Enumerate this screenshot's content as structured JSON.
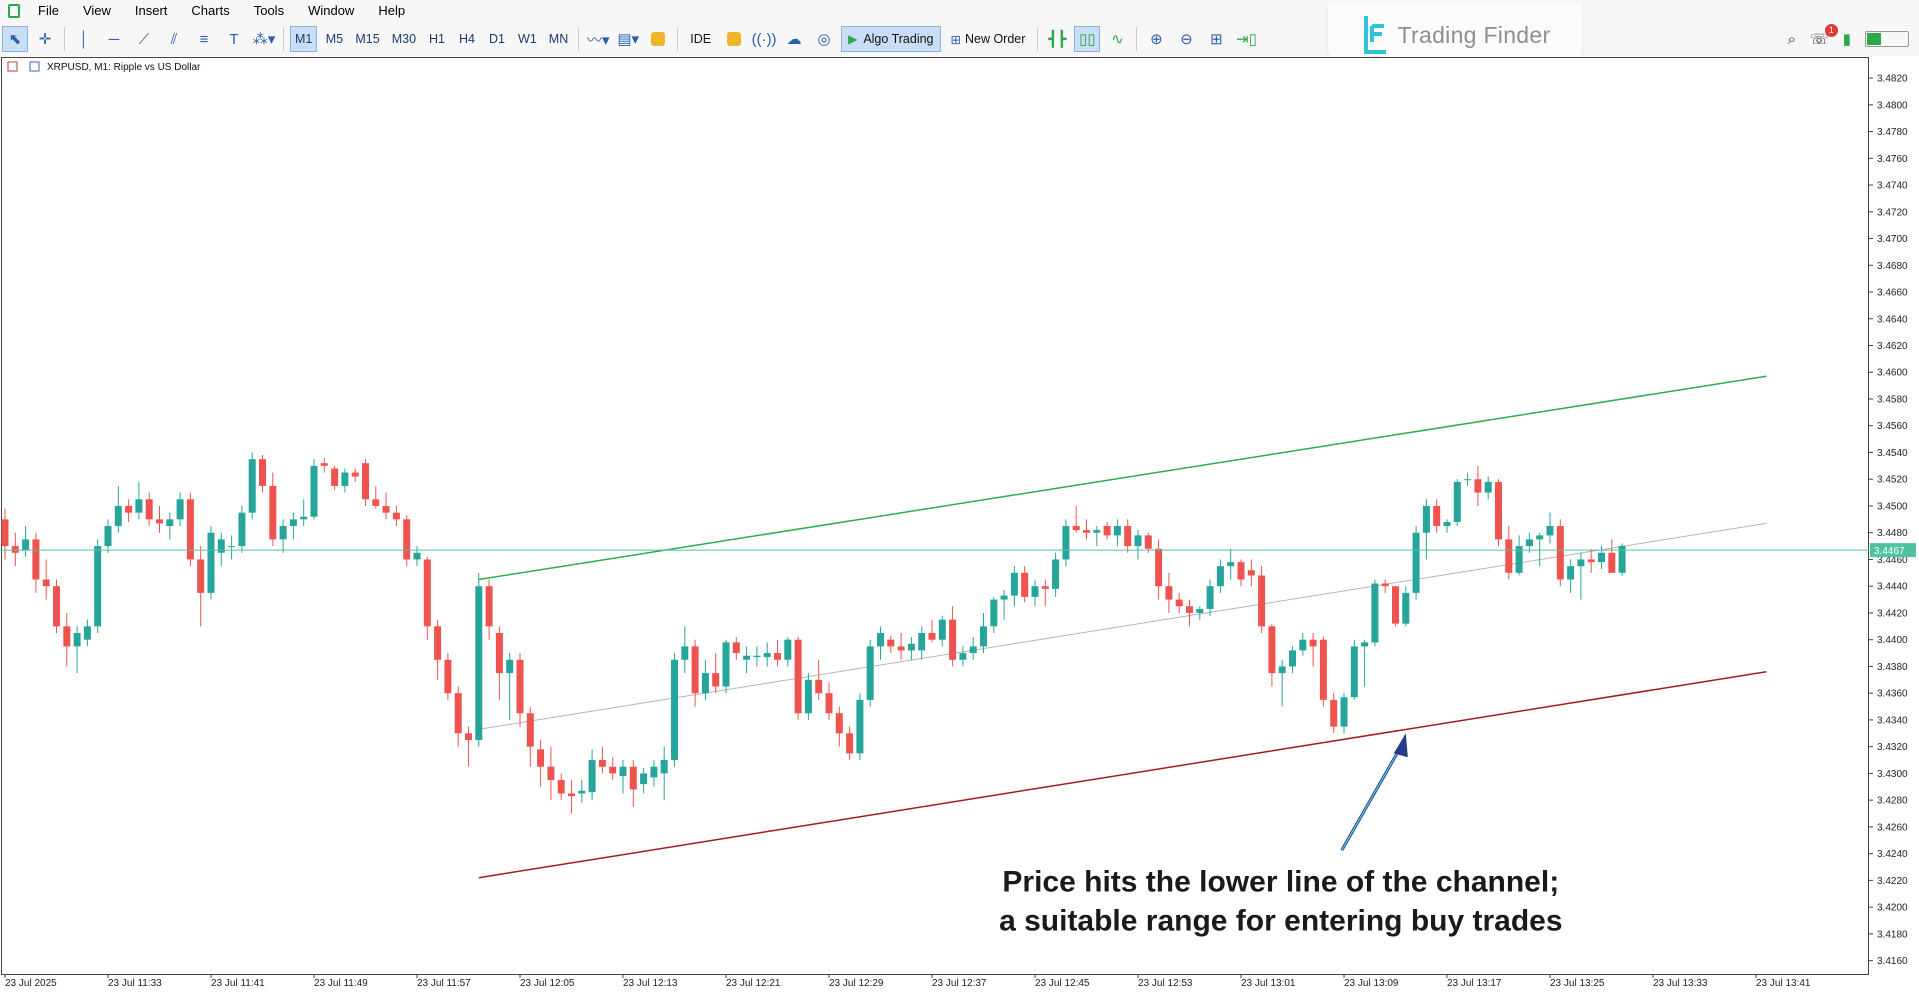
{
  "menu": [
    "File",
    "View",
    "Insert",
    "Charts",
    "Tools",
    "Window",
    "Help"
  ],
  "toolbar": {
    "timeframes": [
      "M1",
      "M5",
      "M15",
      "M30",
      "H1",
      "H4",
      "D1",
      "W1",
      "MN"
    ],
    "active_timeframe": "M1",
    "ide_label": "IDE",
    "algo_label": "Algo Trading",
    "new_order_label": "New Order",
    "notification_count": "1"
  },
  "logo": {
    "text": "Trading Finder"
  },
  "colors": {
    "bull": "#26a69a",
    "bear": "#ef5350",
    "upper_channel": "#2eae4a",
    "lower_channel": "#a51b1b",
    "mid_channel": "#b5b5b5",
    "price_line": "#4fc3a1"
  },
  "chart_data": {
    "type": "candlestick",
    "title": "XRPUSD, M1:  Ripple vs US Dollar",
    "symbol": "XRPUSD",
    "timeframe": "M1",
    "ylim": [
      3.415,
      3.4835
    ],
    "yticks": [
      "3.4820",
      "3.4800",
      "3.4780",
      "3.4760",
      "3.4740",
      "3.4720",
      "3.4700",
      "3.4680",
      "3.4660",
      "3.4640",
      "3.4620",
      "3.4600",
      "3.4580",
      "3.4560",
      "3.4540",
      "3.4520",
      "3.4500",
      "3.4480",
      "3.4460",
      "3.4440",
      "3.4420",
      "3.4400",
      "3.4380",
      "3.4360",
      "3.4340",
      "3.4320",
      "3.4300",
      "3.4280",
      "3.4260",
      "3.4240",
      "3.4220",
      "3.4200",
      "3.4180",
      "3.4160"
    ],
    "xticks": [
      {
        "i": 0,
        "label": "23 Jul 2025"
      },
      {
        "i": 10,
        "label": "23 Jul 11:33"
      },
      {
        "i": 20,
        "label": "23 Jul 11:41"
      },
      {
        "i": 30,
        "label": "23 Jul 11:49"
      },
      {
        "i": 40,
        "label": "23 Jul 11:57"
      },
      {
        "i": 50,
        "label": "23 Jul 12:05"
      },
      {
        "i": 60,
        "label": "23 Jul 12:13"
      },
      {
        "i": 70,
        "label": "23 Jul 12:21"
      },
      {
        "i": 80,
        "label": "23 Jul 12:29"
      },
      {
        "i": 90,
        "label": "23 Jul 12:37"
      },
      {
        "i": 100,
        "label": "23 Jul 12:45"
      },
      {
        "i": 110,
        "label": "23 Jul 12:53"
      },
      {
        "i": 120,
        "label": "23 Jul 13:01"
      },
      {
        "i": 130,
        "label": "23 Jul 13:09"
      },
      {
        "i": 140,
        "label": "23 Jul 13:17"
      },
      {
        "i": 150,
        "label": "23 Jul 13:25"
      },
      {
        "i": 160,
        "label": "23 Jul 13:33"
      },
      {
        "i": 170,
        "label": "23 Jul 13:41"
      }
    ],
    "current_price": 3.4467,
    "current_price_label": "3.4467",
    "channel": {
      "start_index": 46,
      "end_index": 171,
      "upper": [
        3.4445,
        3.4597
      ],
      "middle": [
        3.4333,
        3.4487
      ],
      "lower": [
        3.4222,
        3.4376
      ]
    },
    "annotation": {
      "lines": [
        "Price hits the lower line of the channel;",
        "a suitable range for entering buy trades"
      ],
      "arrow_target_index": 136,
      "arrow_target_price": 3.433
    },
    "candles": [
      [
        3.449,
        3.4498,
        3.446,
        3.447
      ],
      [
        3.447,
        3.448,
        3.4455,
        3.4465
      ],
      [
        3.4467,
        3.4485,
        3.4462,
        3.4475
      ],
      [
        3.4475,
        3.448,
        3.4435,
        3.4445
      ],
      [
        3.4445,
        3.446,
        3.443,
        3.444
      ],
      [
        3.444,
        3.4445,
        3.4405,
        3.441
      ],
      [
        3.441,
        3.442,
        3.438,
        3.4395
      ],
      [
        3.4395,
        3.441,
        3.4375,
        3.4405
      ],
      [
        3.44,
        3.4415,
        3.4395,
        3.441
      ],
      [
        3.441,
        3.4475,
        3.4405,
        3.447
      ],
      [
        3.447,
        3.449,
        3.4465,
        3.4485
      ],
      [
        3.4485,
        3.4515,
        3.448,
        3.45
      ],
      [
        3.45,
        3.4505,
        3.4488,
        3.4495
      ],
      [
        3.4495,
        3.4518,
        3.449,
        3.4505
      ],
      [
        3.4505,
        3.451,
        3.4485,
        3.449
      ],
      [
        3.449,
        3.45,
        3.448,
        3.4487
      ],
      [
        3.4485,
        3.4495,
        3.4475,
        3.449
      ],
      [
        3.449,
        3.451,
        3.4485,
        3.4505
      ],
      [
        3.4505,
        3.451,
        3.4455,
        3.446
      ],
      [
        3.446,
        3.447,
        3.441,
        3.4435
      ],
      [
        3.4435,
        3.4485,
        3.443,
        3.448
      ],
      [
        3.4465,
        3.448,
        3.4455,
        3.4475
      ],
      [
        3.447,
        3.4478,
        3.446,
        3.447
      ],
      [
        3.447,
        3.45,
        3.4465,
        3.4495
      ],
      [
        3.4495,
        3.454,
        3.449,
        3.4535
      ],
      [
        3.4535,
        3.4538,
        3.451,
        3.4515
      ],
      [
        3.4515,
        3.4525,
        3.447,
        3.4475
      ],
      [
        3.4475,
        3.449,
        3.4465,
        3.4485
      ],
      [
        3.4485,
        3.4495,
        3.4475,
        3.449
      ],
      [
        3.449,
        3.4505,
        3.4485,
        3.4492
      ],
      [
        3.4492,
        3.4535,
        3.449,
        3.453
      ],
      [
        3.4532,
        3.4536,
        3.4525,
        3.453
      ],
      [
        3.4528,
        3.453,
        3.4512,
        3.4515
      ],
      [
        3.4515,
        3.4528,
        3.451,
        3.4525
      ],
      [
        3.4525,
        3.4528,
        3.4518,
        3.4522
      ],
      [
        3.4532,
        3.4535,
        3.45,
        3.4505
      ],
      [
        3.4505,
        3.4515,
        3.4498,
        3.45
      ],
      [
        3.45,
        3.451,
        3.449,
        3.4495
      ],
      [
        3.4495,
        3.45,
        3.4485,
        3.449
      ],
      [
        3.449,
        3.4493,
        3.4455,
        3.446
      ],
      [
        3.446,
        3.447,
        3.4455,
        3.4465
      ],
      [
        3.446,
        3.4462,
        3.44,
        3.441
      ],
      [
        3.441,
        3.4415,
        3.437,
        3.4385
      ],
      [
        3.4385,
        3.439,
        3.4355,
        3.436
      ],
      [
        3.436,
        3.4365,
        3.432,
        3.433
      ],
      [
        3.433,
        3.4335,
        3.4305,
        3.4325
      ],
      [
        3.4325,
        3.445,
        3.432,
        3.444
      ],
      [
        3.444,
        3.4445,
        3.44,
        3.441
      ],
      [
        3.4405,
        3.441,
        3.4355,
        3.4375
      ],
      [
        3.4375,
        3.439,
        3.434,
        3.4385
      ],
      [
        3.4385,
        3.439,
        3.4335,
        3.4345
      ],
      [
        3.4345,
        3.435,
        3.4305,
        3.432
      ],
      [
        3.4318,
        3.4325,
        3.429,
        3.4305
      ],
      [
        3.4305,
        3.432,
        3.428,
        3.4295
      ],
      [
        3.4295,
        3.43,
        3.428,
        3.4285
      ],
      [
        3.4285,
        3.4295,
        3.427,
        3.4283
      ],
      [
        3.4285,
        3.4295,
        3.4278,
        3.4287
      ],
      [
        3.4286,
        3.4318,
        3.428,
        3.431
      ],
      [
        3.431,
        3.432,
        3.43,
        3.4305
      ],
      [
        3.4305,
        3.4312,
        3.4295,
        3.43
      ],
      [
        3.4298,
        3.431,
        3.4285,
        3.4305
      ],
      [
        3.4305,
        3.431,
        3.4275,
        3.4288
      ],
      [
        3.4292,
        3.4304,
        3.4285,
        3.43
      ],
      [
        3.4297,
        3.431,
        3.429,
        3.4305
      ],
      [
        3.43,
        3.432,
        3.428,
        3.431
      ],
      [
        3.431,
        3.439,
        3.4305,
        3.4385
      ],
      [
        3.4385,
        3.441,
        3.4375,
        3.4395
      ],
      [
        3.4395,
        3.44,
        3.435,
        3.436
      ],
      [
        3.436,
        3.4385,
        3.4355,
        3.4375
      ],
      [
        3.4375,
        3.439,
        3.436,
        3.4365
      ],
      [
        3.4365,
        3.44,
        3.436,
        3.4398
      ],
      [
        3.4398,
        3.4402,
        3.4385,
        3.439
      ],
      [
        3.4385,
        3.4395,
        3.4375,
        3.4388
      ],
      [
        3.4387,
        3.4395,
        3.438,
        3.4388
      ],
      [
        3.4387,
        3.4398,
        3.438,
        3.439
      ],
      [
        3.439,
        3.44,
        3.438,
        3.4385
      ],
      [
        3.4385,
        3.4402,
        3.438,
        3.44
      ],
      [
        3.44,
        3.4402,
        3.434,
        3.4345
      ],
      [
        3.4345,
        3.4375,
        3.434,
        3.437
      ],
      [
        3.437,
        3.4385,
        3.4355,
        3.436
      ],
      [
        3.436,
        3.4368,
        3.434,
        3.4345
      ],
      [
        3.4345,
        3.435,
        3.432,
        3.433
      ],
      [
        3.433,
        3.4335,
        3.431,
        3.4315
      ],
      [
        3.4315,
        3.436,
        3.431,
        3.4355
      ],
      [
        3.4355,
        3.44,
        3.435,
        3.4395
      ],
      [
        3.4395,
        3.441,
        3.4385,
        3.4405
      ],
      [
        3.44,
        3.4403,
        3.439,
        3.4395
      ],
      [
        3.4395,
        3.4405,
        3.4385,
        3.4392
      ],
      [
        3.4392,
        3.4402,
        3.4385,
        3.4397
      ],
      [
        3.4392,
        3.441,
        3.4385,
        3.4405
      ],
      [
        3.4405,
        3.4415,
        3.4398,
        3.44
      ],
      [
        3.44,
        3.4418,
        3.4395,
        3.4415
      ],
      [
        3.4415,
        3.4425,
        3.438,
        3.4385
      ],
      [
        3.4385,
        3.4395,
        3.438,
        3.439
      ],
      [
        3.439,
        3.4402,
        3.4385,
        3.4395
      ],
      [
        3.4395,
        3.442,
        3.439,
        3.441
      ],
      [
        3.441,
        3.4432,
        3.4405,
        3.443
      ],
      [
        3.443,
        3.4437,
        3.4415,
        3.4433
      ],
      [
        3.4433,
        3.4455,
        3.4425,
        3.445
      ],
      [
        3.445,
        3.4455,
        3.4428,
        3.4432
      ],
      [
        3.4432,
        3.4445,
        3.4425,
        3.444
      ],
      [
        3.444,
        3.4445,
        3.4425,
        3.4438
      ],
      [
        3.4438,
        3.4465,
        3.4432,
        3.446
      ],
      [
        3.446,
        3.449,
        3.4455,
        3.4485
      ],
      [
        3.4485,
        3.45,
        3.448,
        3.4482
      ],
      [
        3.4482,
        3.449,
        3.4475,
        3.448
      ],
      [
        3.448,
        3.4485,
        3.447,
        3.4482
      ],
      [
        3.4485,
        3.4488,
        3.4475,
        3.4478
      ],
      [
        3.4478,
        3.449,
        3.447,
        3.4485
      ],
      [
        3.4485,
        3.449,
        3.4465,
        3.447
      ],
      [
        3.447,
        3.4482,
        3.446,
        3.4478
      ],
      [
        3.4478,
        3.448,
        3.4465,
        3.4468
      ],
      [
        3.4468,
        3.4475,
        3.443,
        3.444
      ],
      [
        3.444,
        3.445,
        3.442,
        3.443
      ],
      [
        3.443,
        3.4435,
        3.442,
        3.4425
      ],
      [
        3.4425,
        3.443,
        3.441,
        3.442
      ],
      [
        3.442,
        3.4425,
        3.4415,
        3.4423
      ],
      [
        3.4423,
        3.4445,
        3.4418,
        3.444
      ],
      [
        3.444,
        3.446,
        3.4435,
        3.4455
      ],
      [
        3.4455,
        3.4468,
        3.4445,
        3.4458
      ],
      [
        3.4458,
        3.446,
        3.444,
        3.4445
      ],
      [
        3.4452,
        3.446,
        3.444,
        3.4448
      ],
      [
        3.4448,
        3.4455,
        3.4405,
        3.441
      ],
      [
        3.441,
        3.4412,
        3.4365,
        3.4375
      ],
      [
        3.4375,
        3.4385,
        3.435,
        3.438
      ],
      [
        3.438,
        3.4395,
        3.4375,
        3.4392
      ],
      [
        3.4392,
        3.4405,
        3.4388,
        3.44
      ],
      [
        3.44,
        3.4405,
        3.438,
        3.4395
      ],
      [
        3.44,
        3.4402,
        3.435,
        3.4355
      ],
      [
        3.4355,
        3.436,
        3.433,
        3.4335
      ],
      [
        3.4335,
        3.436,
        3.433,
        3.4357
      ],
      [
        3.4357,
        3.44,
        3.4355,
        3.4395
      ],
      [
        3.4395,
        3.44,
        3.4365,
        3.4398
      ],
      [
        3.4398,
        3.4445,
        3.4395,
        3.4442
      ],
      [
        3.4442,
        3.4445,
        3.4435,
        3.444
      ],
      [
        3.444,
        3.444,
        3.441,
        3.4412
      ],
      [
        3.4412,
        3.444,
        3.441,
        3.4435
      ],
      [
        3.4435,
        3.4485,
        3.443,
        3.448
      ],
      [
        3.448,
        3.4505,
        3.446,
        3.45
      ],
      [
        3.45,
        3.4505,
        3.448,
        3.4485
      ],
      [
        3.4485,
        3.449,
        3.448,
        3.4488
      ],
      [
        3.4488,
        3.452,
        3.4485,
        3.4518
      ],
      [
        3.452,
        3.4525,
        3.4515,
        3.452
      ],
      [
        3.452,
        3.453,
        3.45,
        3.451
      ],
      [
        3.451,
        3.4522,
        3.4505,
        3.4518
      ],
      [
        3.4518,
        3.452,
        3.447,
        3.4475
      ],
      [
        3.4475,
        3.4485,
        3.4445,
        3.445
      ],
      [
        3.445,
        3.4478,
        3.4448,
        3.447
      ],
      [
        3.447,
        3.448,
        3.4465,
        3.4475
      ],
      [
        3.4475,
        3.448,
        3.4455,
        3.4478
      ],
      [
        3.4478,
        3.4495,
        3.4472,
        3.4485
      ],
      [
        3.4485,
        3.449,
        3.444,
        3.4445
      ],
      [
        3.4445,
        3.446,
        3.4435,
        3.4455
      ],
      [
        3.4455,
        3.4465,
        3.443,
        3.446
      ],
      [
        3.446,
        3.4468,
        3.445,
        3.4458
      ],
      [
        3.4458,
        3.447,
        3.4453,
        3.4465
      ],
      [
        3.4465,
        3.4475,
        3.445,
        3.445
      ],
      [
        3.445,
        3.4472,
        3.4448,
        3.447
      ]
    ]
  }
}
